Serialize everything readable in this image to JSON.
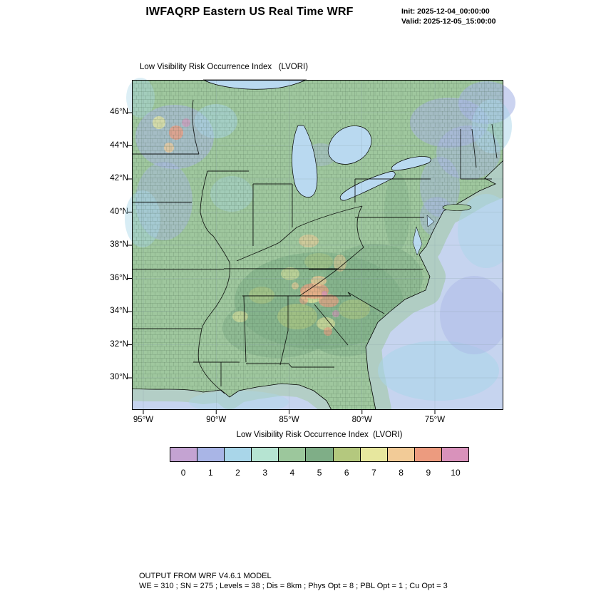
{
  "header": {
    "title": "IWFAQRP Eastern US Real Time WRF",
    "init_line": "Init: 2025-12-04_00:00:00",
    "valid_line": "Valid: 2025-12-05_15:00:00"
  },
  "map": {
    "plot_title": "Low Visibility Risk Occurrence Index   (LVORI)",
    "lat_ticks": [
      "46°N",
      "44°N",
      "42°N",
      "40°N",
      "38°N",
      "36°N",
      "34°N",
      "32°N",
      "30°N"
    ],
    "lon_ticks": [
      "95°W",
      "90°W",
      "85°W",
      "80°W",
      "75°W"
    ],
    "colors": {
      "land": "#9fc79e",
      "ocean": "#c6d4ef",
      "lake": "#b9d9f0",
      "coastal_band": "#9fc79e",
      "graticule": "#88a0a8"
    }
  },
  "colorbar": {
    "title": "Low Visibility Risk Occurrence Index  (LVORI)",
    "tick_labels": [
      "0",
      "1",
      "2",
      "3",
      "4",
      "5",
      "6",
      "7",
      "8",
      "9",
      "10"
    ],
    "colors": [
      "#c4a3d2",
      "#a9b5e6",
      "#a9d6e9",
      "#b6e4d2",
      "#9cc79c",
      "#7fae87",
      "#b4c87e",
      "#e7e79e",
      "#f2cb97",
      "#ec9b7f",
      "#d992bb"
    ]
  },
  "footer": {
    "line1": "OUTPUT FROM WRF V4.6.1 MODEL",
    "line2": "WE = 310 ; SN = 275 ; Levels = 38 ; Dis = 8km ; Phys Opt = 8 ; PBL Opt = 1 ; Cu Opt = 3"
  },
  "chart_data": {
    "type": "heatmap",
    "title": "Low Visibility Risk Occurrence Index (LVORI)",
    "region": "Eastern US",
    "x_ticks": [
      "95°W",
      "90°W",
      "85°W",
      "80°W",
      "75°W"
    ],
    "y_ticks": [
      "46°N",
      "44°N",
      "42°N",
      "40°N",
      "38°N",
      "36°N",
      "34°N",
      "32°N",
      "30°N"
    ],
    "levels": [
      0,
      1,
      2,
      3,
      4,
      5,
      6,
      7,
      8,
      9,
      10
    ],
    "level_colors": [
      "#c4a3d2",
      "#a9b5e6",
      "#a9d6e9",
      "#b6e4d2",
      "#9cc79c",
      "#7fae87",
      "#b4c87e",
      "#e7e79e",
      "#f2cb97",
      "#ec9b7f",
      "#d992bb"
    ],
    "legend_position": "bottom"
  }
}
